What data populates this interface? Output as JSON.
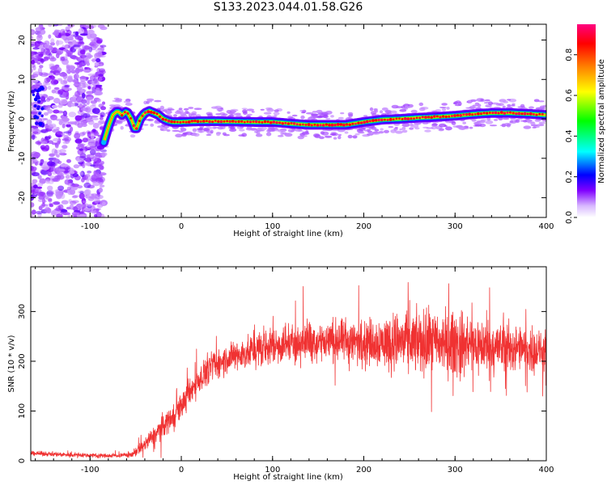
{
  "title": "S133.2023.044.01.58.G26",
  "chart_data": [
    {
      "type": "heatmap",
      "xlabel": "Height of straight line (km)",
      "ylabel": "Frequency (Hz)",
      "xlim": [
        -165,
        400
      ],
      "ylim": [
        -25,
        24
      ],
      "x_ticks": [
        -100,
        0,
        100,
        200,
        300,
        400
      ],
      "x_tick_labels": [
        "-100",
        "0",
        "100",
        "200",
        "300",
        "400"
      ],
      "y_ticks": [
        -20,
        -10,
        0,
        10,
        20
      ],
      "y_tick_labels": [
        "-20",
        "-10",
        "0",
        "10",
        "20"
      ],
      "colorbar": {
        "label": "Normalized spectral amplitude",
        "range": [
          0,
          0.95
        ],
        "ticks": [
          0,
          0.2,
          0.4,
          0.6,
          0.8
        ],
        "tick_labels": [
          "0.0",
          "0.2",
          "0.4",
          "0.6",
          "0.8"
        ],
        "colormap": [
          "#ffffff",
          "#8000ff",
          "#0000ff",
          "#00ffff",
          "#00ff00",
          "#ffff00",
          "#ff8000",
          "#ff0000",
          "#ff0080"
        ]
      },
      "noise_region_x": [
        -165,
        -85
      ],
      "ridge": {
        "x": [
          -85,
          -80,
          -75,
          -70,
          -65,
          -60,
          -55,
          -50,
          -45,
          -40,
          -35,
          -30,
          -25,
          -20,
          -15,
          -10,
          0,
          20,
          40,
          60,
          80,
          100,
          120,
          140,
          160,
          180,
          200,
          220,
          240,
          260,
          280,
          300,
          320,
          340,
          360,
          380,
          400
        ],
        "frequency": [
          -6,
          -2,
          1,
          2,
          1,
          2,
          0,
          -3,
          0,
          1.5,
          2,
          1.5,
          1,
          0,
          -0.5,
          -0.8,
          -0.8,
          -0.6,
          -0.6,
          -0.7,
          -0.8,
          -0.8,
          -1.2,
          -1.5,
          -1.5,
          -1.5,
          -0.8,
          -0.2,
          0,
          0.3,
          0.5,
          0.8,
          1.2,
          1.5,
          1.5,
          1.3,
          1.0
        ]
      }
    },
    {
      "type": "line",
      "xlabel": "Height of straight line (km)",
      "ylabel": "SNR (10 * v/v)",
      "xlim": [
        -165,
        400
      ],
      "ylim": [
        0,
        390
      ],
      "x_ticks": [
        -100,
        0,
        100,
        200,
        300,
        400
      ],
      "x_tick_labels": [
        "-100",
        "0",
        "100",
        "200",
        "300",
        "400"
      ],
      "y_ticks": [
        0,
        100,
        200,
        300
      ],
      "y_tick_labels": [
        "0",
        "100",
        "200",
        "300"
      ],
      "color": "#f03232",
      "trend": {
        "x": [
          -165,
          -120,
          -80,
          -55,
          -45,
          -30,
          -15,
          0,
          15,
          30,
          50,
          70,
          90,
          110,
          140,
          180,
          220,
          260,
          300,
          340,
          370,
          400
        ],
        "y": [
          15,
          12,
          10,
          12,
          25,
          50,
          80,
          110,
          155,
          185,
          205,
          215,
          228,
          235,
          240,
          240,
          240,
          238,
          235,
          230,
          225,
          218
        ]
      },
      "noise": {
        "x": [
          -165,
          -60,
          -20,
          60,
          100,
          200,
          240,
          300,
          340,
          400
        ],
        "amplitude": [
          4,
          4,
          22,
          28,
          35,
          40,
          55,
          60,
          50,
          35
        ]
      }
    }
  ]
}
